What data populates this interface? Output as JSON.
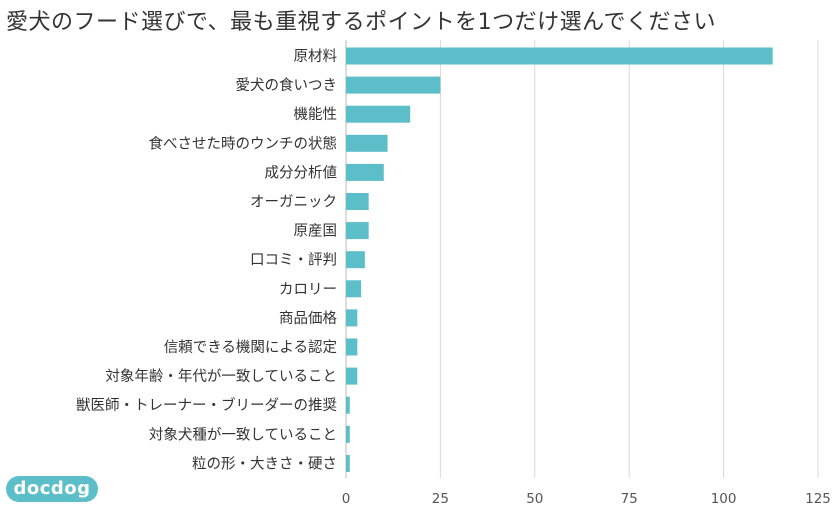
{
  "chart_data": {
    "type": "bar",
    "orientation": "horizontal",
    "title": "愛犬のフード選びで、最も重視するポイントを1つだけ選んでください",
    "categories": [
      "原材料",
      "愛犬の食いつき",
      "機能性",
      "食べさせた時のウンチの状態",
      "成分分析値",
      "オーガニック",
      "原産国",
      "口コミ・評判",
      "カロリー",
      "商品価格",
      "信頼できる機関による認定",
      "対象年齢・年代が一致していること",
      "獣医師・トレーナー・ブリーダーの推奨",
      "対象犬種が一致していること",
      "粒の形・大きさ・硬さ"
    ],
    "values": [
      113,
      25,
      17,
      11,
      10,
      6,
      6,
      5,
      4,
      3,
      3,
      3,
      1,
      1,
      1
    ],
    "xlim": [
      0,
      125
    ],
    "xticks": [
      0,
      25,
      50,
      75,
      100,
      125
    ],
    "xlabel": "",
    "ylabel": "",
    "grid": true,
    "bar_color": "#5bbec8"
  },
  "logo_text": "docdog"
}
